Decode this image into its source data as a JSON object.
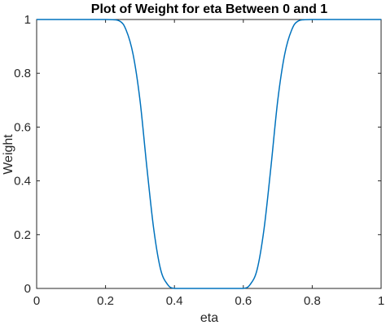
{
  "chart_data": {
    "type": "line",
    "title": "Plot of Weight for eta Between 0 and 1",
    "xlabel": "eta",
    "ylabel": "Weight",
    "xlim": [
      0,
      1
    ],
    "ylim": [
      0,
      1
    ],
    "xticks": [
      0,
      0.2,
      0.4,
      0.6,
      0.8,
      1
    ],
    "xtick_labels": [
      "0",
      "0.2",
      "0.4",
      "0.6",
      "0.8",
      "1"
    ],
    "yticks": [
      0,
      0.2,
      0.4,
      0.6,
      0.8,
      1
    ],
    "ytick_labels": [
      "0",
      "0.2",
      "0.4",
      "0.6",
      "0.8",
      "1"
    ],
    "grid": false,
    "colors": {
      "line": "#0072BD",
      "axis": "#262626",
      "background": "#ffffff"
    },
    "series": [
      {
        "x": [
          0,
          0.1,
          0.2,
          0.24,
          0.26,
          0.28,
          0.3,
          0.32,
          0.34,
          0.36,
          0.38,
          0.4,
          0.45,
          0.5,
          0.55,
          0.6,
          0.62,
          0.64,
          0.66,
          0.68,
          0.7,
          0.72,
          0.74,
          0.76,
          0.8,
          0.9,
          1
        ],
        "y": [
          1,
          1,
          1,
          0.995,
          0.96,
          0.87,
          0.7,
          0.45,
          0.22,
          0.07,
          0.015,
          0,
          0,
          0,
          0,
          0,
          0.015,
          0.07,
          0.22,
          0.45,
          0.7,
          0.87,
          0.96,
          0.995,
          1,
          1,
          1
        ]
      }
    ]
  }
}
